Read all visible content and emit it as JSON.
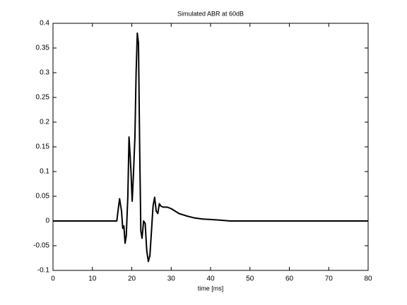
{
  "chart_data": {
    "type": "line",
    "title": "Simulated ABR at 60dB",
    "x_label": "time [ms]",
    "x": [
      0,
      5,
      10,
      15,
      16.2,
      16.5,
      16.9,
      17.4,
      17.7,
      18.0,
      18.3,
      18.6,
      19.0,
      19.3,
      19.6,
      19.8,
      20.1,
      20.4,
      20.8,
      21.1,
      21.4,
      21.7,
      22.0,
      22.3,
      22.6,
      23.0,
      23.4,
      23.8,
      24.2,
      24.6,
      25.0,
      25.4,
      25.8,
      26.2,
      26.6,
      27.0,
      27.4,
      28,
      29,
      30,
      31,
      32,
      34,
      36,
      38,
      40,
      42,
      45,
      50,
      60,
      70,
      80
    ],
    "values": [
      0,
      0,
      0,
      0,
      0,
      0.02,
      0.045,
      0.02,
      -0.015,
      -0.01,
      -0.045,
      -0.03,
      0.05,
      0.17,
      0.13,
      0.1,
      0.04,
      0.09,
      0.17,
      0.3,
      0.38,
      0.36,
      0.15,
      -0.02,
      -0.035,
      0.0,
      -0.005,
      -0.06,
      -0.082,
      -0.07,
      -0.02,
      0.03,
      0.048,
      0.02,
      0.015,
      0.035,
      0.03,
      0.028,
      0.028,
      0.025,
      0.02,
      0.015,
      0.01,
      0.006,
      0.004,
      0.003,
      0.002,
      0,
      0,
      0,
      0,
      0
    ],
    "color": "#000000",
    "xlim": [
      0,
      80
    ],
    "xticks": [
      0,
      10,
      20,
      30,
      40,
      50,
      60,
      70,
      80
    ],
    "ylim": [
      -0.1,
      0.4
    ],
    "yticks": [
      -0.1,
      -0.05,
      0,
      0.05,
      0.1,
      0.15,
      0.2,
      0.25,
      0.3,
      0.35,
      0.4
    ],
    "grid": false
  }
}
